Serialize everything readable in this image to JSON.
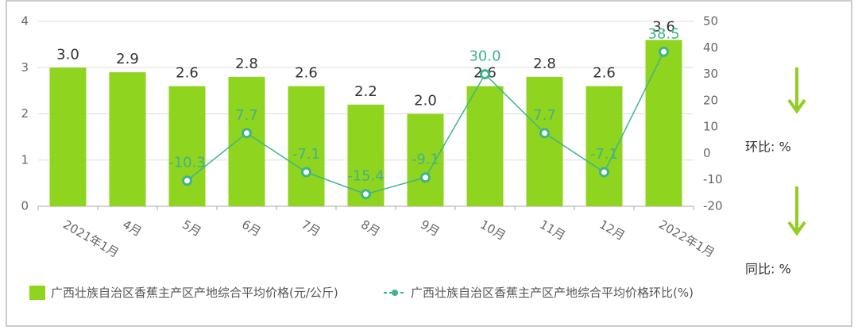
{
  "chart_data": {
    "type": "bar_line",
    "categories": [
      "2021年1月",
      "4月",
      "5月",
      "6月",
      "7月",
      "8月",
      "9月",
      "10月",
      "11月",
      "12月",
      "2022年1月"
    ],
    "series": [
      {
        "name": "广西壮族自治区香蕉主产区产地综合平均价格(元/公斤)",
        "type": "bar",
        "color": "#8fd41e",
        "values": [
          3.0,
          2.9,
          2.6,
          2.8,
          2.6,
          2.2,
          2.0,
          2.6,
          2.8,
          2.6,
          3.6
        ],
        "value_labels": [
          "3.0",
          "2.9",
          "2.6",
          "2.8",
          "2.6",
          "2.2",
          "2.0",
          "2.6",
          "2.8",
          "2.6",
          "3.6"
        ]
      },
      {
        "name": "广西壮族自治区香蕉主产区产地综合平均价格环比(%)",
        "type": "line",
        "color": "#3fb489",
        "axis": "y2",
        "values": [
          null,
          null,
          -10.3,
          7.7,
          -7.1,
          -15.4,
          -9.1,
          30.0,
          7.7,
          -7.1,
          38.5
        ],
        "value_labels": [
          null,
          null,
          "-10.3",
          "7.7",
          "-7.1",
          "-15.4",
          "-9.1",
          "30.0",
          "7.7",
          "-7.1",
          "38.5"
        ]
      }
    ],
    "ylim": [
      0,
      4
    ],
    "yticks": [
      0,
      1,
      2,
      3,
      4
    ],
    "y2lim": [
      -20,
      50
    ],
    "y2ticks": [
      -20,
      -10,
      0,
      10,
      20,
      30,
      40,
      50
    ],
    "grid": true,
    "side_labels": [
      "环比: %",
      "同比: %"
    ]
  }
}
